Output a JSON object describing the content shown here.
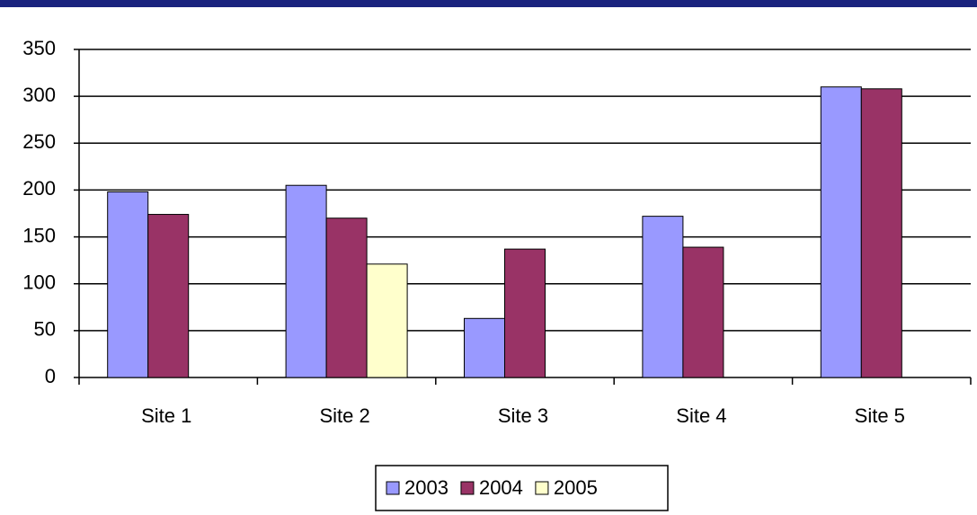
{
  "chart_data": {
    "type": "bar",
    "categories": [
      "Site 1",
      "Site 2",
      "Site 3",
      "Site 4",
      "Site 5"
    ],
    "series": [
      {
        "name": "2003",
        "color": "#9999ff",
        "values": [
          198,
          205,
          63,
          172,
          310
        ]
      },
      {
        "name": "2004",
        "color": "#993366",
        "values": [
          174,
          170,
          137,
          139,
          308
        ]
      },
      {
        "name": "2005",
        "color": "#ffffcc",
        "values": [
          null,
          121,
          null,
          null,
          null
        ]
      }
    ],
    "ylim": [
      0,
      350
    ],
    "yticks": [
      0,
      50,
      100,
      150,
      200,
      250,
      300,
      350
    ],
    "grid": true,
    "legend": "bottom"
  }
}
